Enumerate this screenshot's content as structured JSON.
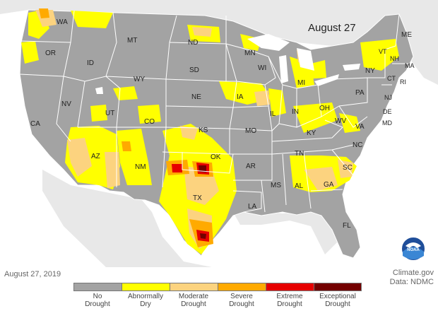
{
  "map_title": "August 27",
  "footer_date": "August 27, 2019",
  "credit": {
    "line1": "Climate.gov",
    "line2": "Data: NDMC"
  },
  "noaa_logo_text": "NOAA",
  "legend": [
    {
      "line1": "No",
      "line2": "Drought",
      "color": "#a3a3a3"
    },
    {
      "line1": "Abnormally",
      "line2": "Dry",
      "color": "#ffff00"
    },
    {
      "line1": "Moderate",
      "line2": "Drought",
      "color": "#fcd37f"
    },
    {
      "line1": "Severe",
      "line2": "Drought",
      "color": "#ffaa00"
    },
    {
      "line1": "Extreme",
      "line2": "Drought",
      "color": "#e60000"
    },
    {
      "line1": "Exceptional",
      "line2": "Drought",
      "color": "#730000"
    }
  ],
  "states": {
    "WA": "WA",
    "OR": "OR",
    "CA": "CA",
    "ID": "ID",
    "NV": "NV",
    "MT": "MT",
    "WY": "WY",
    "UT": "UT",
    "AZ": "AZ",
    "CO": "CO",
    "NM": "NM",
    "ND": "ND",
    "SD": "SD",
    "NE": "NE",
    "KS": "KS",
    "OK": "OK",
    "TX": "TX",
    "MN": "MN",
    "IA": "IA",
    "MO": "MO",
    "AR": "AR",
    "LA": "LA",
    "WI": "WI",
    "IL": "IL",
    "MI": "MI",
    "IN": "IN",
    "OH": "OH",
    "KY": "KY",
    "TN": "TN",
    "MS": "MS",
    "AL": "AL",
    "GA": "GA",
    "FL": "FL",
    "SC": "SC",
    "NC": "NC",
    "VA": "VA",
    "WV": "WV",
    "PA": "PA",
    "NY": "NY",
    "VT": "VT",
    "NH": "NH",
    "ME": "ME",
    "MA": "MA",
    "CT": "CT",
    "RI": "RI",
    "NJ": "NJ",
    "DE": "DE",
    "MD": "MD"
  }
}
